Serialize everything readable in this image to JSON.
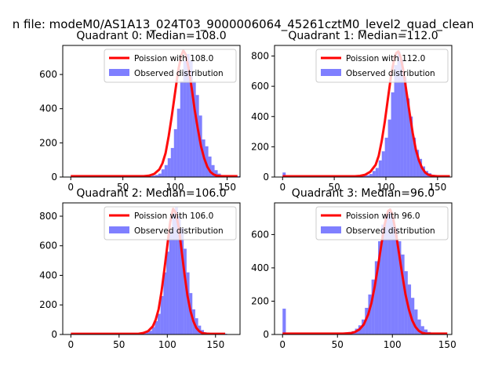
{
  "figure": {
    "suptitle": "n file: modeM0/AS1A13_024T03_9000006064_45261cztM0_level2_quad_clean"
  },
  "chart_data": [
    {
      "type": "bar",
      "title": "Quadrant 0: Median=108.0",
      "xlabel": "",
      "ylabel": "",
      "xlim": [
        -7.7,
        162.4
      ],
      "ylim": [
        0,
        770
      ],
      "xticks": [
        0,
        50,
        100,
        150
      ],
      "yticks": [
        0,
        200,
        400,
        600
      ],
      "bin_width": 3,
      "legend_position": "top-right",
      "series": [
        {
          "name": "Poission with 108.0",
          "kind": "line",
          "color": "#ff0000",
          "x": [
            0,
            60,
            70,
            75,
            80,
            85,
            88,
            91,
            94,
            97,
            100,
            103,
            106,
            108,
            110,
            113,
            116,
            119,
            122,
            125,
            128,
            131,
            134,
            137,
            140,
            145,
            155,
            160
          ],
          "y": [
            5,
            5,
            5,
            8,
            18,
            45,
            80,
            140,
            240,
            360,
            490,
            620,
            710,
            740,
            720,
            640,
            520,
            390,
            280,
            180,
            110,
            60,
            30,
            15,
            8,
            5,
            5,
            5
          ]
        },
        {
          "name": "Observed distribution",
          "kind": "hist",
          "color": "#0000ff",
          "x": [
            0,
            3,
            6,
            9,
            12,
            15,
            18,
            21,
            24,
            27,
            30,
            33,
            36,
            39,
            42,
            45,
            48,
            51,
            54,
            57,
            60,
            63,
            66,
            69,
            72,
            75,
            78,
            81,
            84,
            87,
            90,
            93,
            96,
            99,
            102,
            105,
            108,
            111,
            114,
            117,
            120,
            123,
            126,
            129,
            132,
            135,
            138,
            141,
            144,
            147,
            150,
            153,
            156,
            159
          ],
          "values": [
            5,
            5,
            5,
            5,
            5,
            5,
            5,
            5,
            5,
            5,
            5,
            5,
            5,
            5,
            5,
            5,
            5,
            5,
            5,
            5,
            5,
            5,
            5,
            5,
            5,
            5,
            8,
            12,
            20,
            45,
            70,
            110,
            170,
            280,
            400,
            560,
            680,
            720,
            680,
            560,
            480,
            360,
            220,
            180,
            120,
            70,
            40,
            20,
            10,
            5,
            5,
            5,
            5,
            5
          ]
        }
      ]
    },
    {
      "type": "bar",
      "title": "Quadrant 1: Median=112.0",
      "xlabel": "",
      "ylabel": "",
      "xlim": [
        -7.8,
        163.8
      ],
      "ylim": [
        0,
        870
      ],
      "xticks": [
        0,
        50,
        100,
        150
      ],
      "yticks": [
        0,
        200,
        400,
        600,
        800
      ],
      "bin_width": 3,
      "legend_position": "top-right",
      "series": [
        {
          "name": "Poission with 112.0",
          "kind": "line",
          "color": "#ff0000",
          "x": [
            0,
            60,
            70,
            75,
            80,
            85,
            90,
            93,
            96,
            99,
            102,
            105,
            108,
            110,
            112,
            114,
            117,
            120,
            123,
            126,
            129,
            132,
            135,
            138,
            141,
            145,
            150,
            155,
            162
          ],
          "y": [
            5,
            5,
            5,
            8,
            15,
            35,
            80,
            140,
            240,
            370,
            520,
            670,
            780,
            820,
            830,
            800,
            700,
            560,
            420,
            290,
            180,
            110,
            60,
            30,
            15,
            8,
            5,
            5,
            5
          ]
        },
        {
          "name": "Observed distribution",
          "kind": "hist",
          "color": "#0000ff",
          "x": [
            0,
            3,
            6,
            9,
            12,
            15,
            18,
            21,
            24,
            27,
            30,
            33,
            36,
            39,
            42,
            45,
            48,
            51,
            54,
            57,
            60,
            63,
            66,
            69,
            72,
            75,
            78,
            81,
            84,
            87,
            90,
            93,
            96,
            99,
            102,
            105,
            108,
            111,
            114,
            117,
            120,
            123,
            126,
            129,
            132,
            135,
            138,
            141,
            144,
            147,
            150,
            153,
            156,
            159
          ],
          "values": [
            30,
            5,
            5,
            5,
            5,
            5,
            5,
            5,
            5,
            5,
            5,
            5,
            5,
            5,
            5,
            5,
            5,
            5,
            5,
            5,
            5,
            5,
            5,
            5,
            5,
            5,
            8,
            12,
            20,
            40,
            60,
            110,
            170,
            260,
            380,
            560,
            740,
            830,
            780,
            660,
            520,
            400,
            260,
            180,
            120,
            70,
            40,
            25,
            15,
            8,
            5,
            5,
            5,
            5
          ]
        }
      ]
    },
    {
      "type": "bar",
      "title": "Quadrant 2: Median=106.0",
      "xlabel": "",
      "ylabel": "",
      "xlim": [
        -8.4,
        175.4
      ],
      "ylim": [
        0,
        890
      ],
      "xticks": [
        0,
        50,
        100,
        150
      ],
      "yticks": [
        0,
        200,
        400,
        600,
        800
      ],
      "bin_width": 3,
      "legend_position": "top-right",
      "series": [
        {
          "name": "Poission with 106.0",
          "kind": "line",
          "color": "#ff0000",
          "x": [
            0,
            60,
            70,
            75,
            80,
            85,
            88,
            91,
            94,
            97,
            100,
            103,
            106,
            109,
            112,
            115,
            118,
            121,
            124,
            127,
            130,
            133,
            136,
            140,
            145,
            150,
            160
          ],
          "y": [
            5,
            5,
            5,
            10,
            22,
            55,
            100,
            170,
            290,
            440,
            600,
            760,
            850,
            820,
            720,
            560,
            400,
            260,
            160,
            90,
            45,
            22,
            10,
            6,
            5,
            5,
            5
          ]
        },
        {
          "name": "Observed distribution",
          "kind": "hist",
          "color": "#0000ff",
          "x": [
            0,
            3,
            6,
            9,
            12,
            15,
            18,
            21,
            24,
            27,
            30,
            33,
            36,
            39,
            42,
            45,
            48,
            51,
            54,
            57,
            60,
            63,
            66,
            69,
            72,
            75,
            78,
            81,
            84,
            87,
            90,
            93,
            96,
            99,
            102,
            105,
            108,
            111,
            114,
            117,
            120,
            123,
            126,
            129,
            132,
            135,
            138,
            141,
            144,
            147,
            150,
            153,
            156,
            159
          ],
          "values": [
            5,
            5,
            5,
            5,
            5,
            5,
            5,
            5,
            5,
            5,
            5,
            5,
            5,
            5,
            5,
            5,
            5,
            5,
            5,
            5,
            5,
            5,
            5,
            5,
            5,
            8,
            15,
            25,
            50,
            90,
            140,
            260,
            420,
            560,
            700,
            820,
            860,
            800,
            720,
            580,
            420,
            280,
            170,
            110,
            60,
            30,
            15,
            8,
            5,
            5,
            5,
            5,
            5,
            5
          ]
        }
      ]
    },
    {
      "type": "bar",
      "title": "Quadrant 3: Median=96.0",
      "xlabel": "",
      "ylabel": "",
      "xlim": [
        -7.3,
        154.1
      ],
      "ylim": [
        0,
        790
      ],
      "xticks": [
        0,
        50,
        100,
        150
      ],
      "yticks": [
        0,
        200,
        400,
        600
      ],
      "bin_width": 3,
      "legend_position": "top-right",
      "series": [
        {
          "name": "Poission with 96.0",
          "kind": "line",
          "color": "#ff0000",
          "x": [
            0,
            55,
            62,
            66,
            70,
            74,
            78,
            81,
            84,
            87,
            90,
            93,
            96,
            98,
            100,
            103,
            106,
            109,
            112,
            115,
            118,
            121,
            124,
            127,
            130,
            135,
            140,
            150
          ],
          "y": [
            5,
            5,
            8,
            15,
            30,
            60,
            120,
            190,
            290,
            410,
            540,
            660,
            740,
            750,
            720,
            620,
            490,
            360,
            240,
            150,
            85,
            45,
            22,
            10,
            6,
            5,
            5,
            5
          ]
        },
        {
          "name": "Observed distribution",
          "kind": "hist",
          "color": "#0000ff",
          "x": [
            0,
            3,
            6,
            9,
            12,
            15,
            18,
            21,
            24,
            27,
            30,
            33,
            36,
            39,
            42,
            45,
            48,
            51,
            54,
            57,
            60,
            63,
            66,
            69,
            72,
            75,
            78,
            81,
            84,
            87,
            90,
            93,
            96,
            99,
            102,
            105,
            108,
            111,
            114,
            117,
            120,
            123,
            126,
            129,
            132,
            135,
            138,
            141,
            144,
            147
          ],
          "values": [
            155,
            5,
            5,
            5,
            5,
            5,
            5,
            5,
            5,
            5,
            5,
            5,
            5,
            5,
            5,
            5,
            5,
            5,
            5,
            12,
            15,
            20,
            35,
            55,
            90,
            160,
            240,
            330,
            440,
            560,
            660,
            720,
            740,
            700,
            640,
            560,
            480,
            380,
            300,
            220,
            150,
            90,
            50,
            30,
            15,
            8,
            5,
            5,
            5,
            5
          ]
        }
      ]
    }
  ]
}
